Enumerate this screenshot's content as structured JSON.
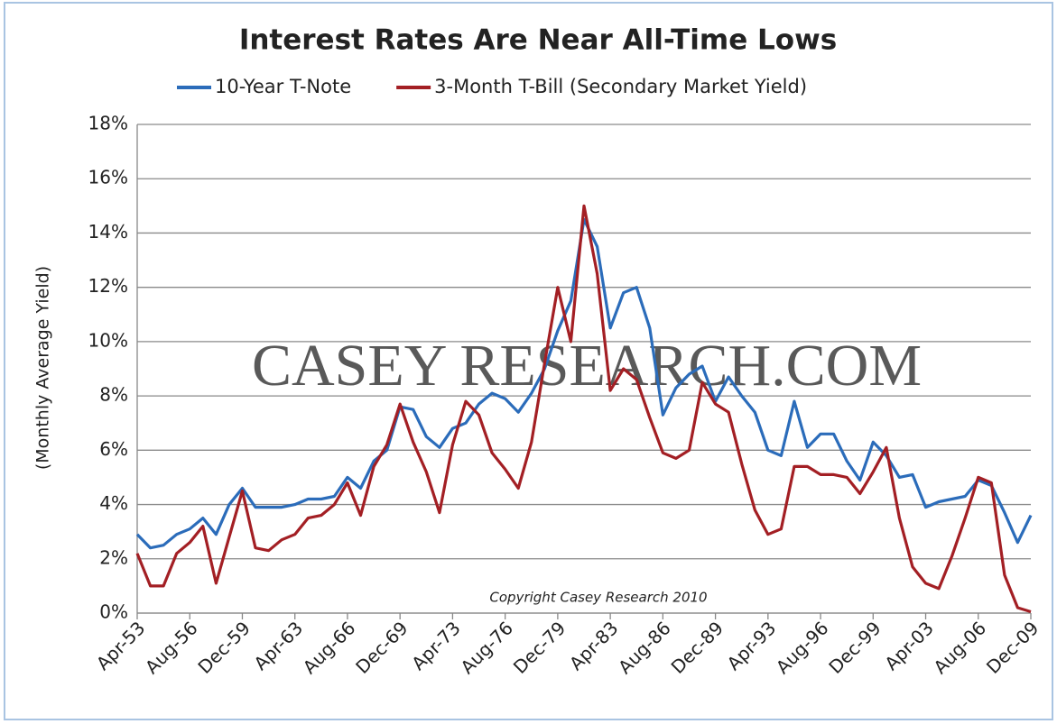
{
  "chart_data": {
    "type": "line",
    "title": "Interest Rates Are Near All-Time Lows",
    "y_label": "(Monthly Average Yield)",
    "annotation": "Copyright Casey Research 2010",
    "watermark": "CASEY RESEARCH.COM",
    "categories": [
      "Apr-53",
      null,
      null,
      null,
      "Aug-56",
      null,
      null,
      null,
      "Dec-59",
      null,
      null,
      null,
      "Apr-63",
      null,
      null,
      null,
      "Aug-66",
      null,
      null,
      null,
      "Dec-69",
      null,
      null,
      null,
      "Apr-73",
      null,
      null,
      null,
      "Aug-76",
      null,
      null,
      null,
      "Dec-79",
      null,
      null,
      null,
      "Apr-83",
      null,
      null,
      null,
      "Aug-86",
      null,
      null,
      null,
      "Dec-89",
      null,
      null,
      null,
      "Apr-93",
      null,
      null,
      null,
      "Aug-96",
      null,
      null,
      null,
      "Dec-99",
      null,
      null,
      null,
      "Apr-03",
      null,
      null,
      null,
      "Aug-06",
      null,
      null,
      null,
      "Dec-09"
    ],
    "series": [
      {
        "name": "10-Year T-Note",
        "color": "#2b6cba",
        "values": [
          2.9,
          2.4,
          2.5,
          2.9,
          3.1,
          3.5,
          2.9,
          4.0,
          4.6,
          3.9,
          3.9,
          3.9,
          4.0,
          4.2,
          4.2,
          4.3,
          5.0,
          4.6,
          5.6,
          6.0,
          7.6,
          7.5,
          6.5,
          6.1,
          6.8,
          7.0,
          7.7,
          8.1,
          7.9,
          7.4,
          8.1,
          9.0,
          10.4,
          11.5,
          14.5,
          13.5,
          10.5,
          11.8,
          12.0,
          10.5,
          7.3,
          8.3,
          8.8,
          9.1,
          7.8,
          8.7,
          8.0,
          7.4,
          6.0,
          5.8,
          7.8,
          6.1,
          6.6,
          6.6,
          5.6,
          4.9,
          6.3,
          5.8,
          5.0,
          5.1,
          3.9,
          4.1,
          4.2,
          4.3,
          4.9,
          4.7,
          3.7,
          2.6,
          3.6
        ]
      },
      {
        "name": "3-Month T-Bill (Secondary Market Yield)",
        "color": "#a31f24",
        "values": [
          2.2,
          1.0,
          1.0,
          2.2,
          2.6,
          3.2,
          1.1,
          2.8,
          4.5,
          2.4,
          2.3,
          2.7,
          2.9,
          3.5,
          3.6,
          4.0,
          4.8,
          3.6,
          5.4,
          6.2,
          7.7,
          6.3,
          5.2,
          3.7,
          6.2,
          7.8,
          7.3,
          5.9,
          5.3,
          4.6,
          6.3,
          9.2,
          12.0,
          10.0,
          15.0,
          12.5,
          8.2,
          9.0,
          8.6,
          7.2,
          5.9,
          5.7,
          6.0,
          8.5,
          7.7,
          7.4,
          5.5,
          3.8,
          2.9,
          3.1,
          5.4,
          5.4,
          5.1,
          5.1,
          5.0,
          4.4,
          5.2,
          6.1,
          3.5,
          1.7,
          1.1,
          0.9,
          2.1,
          3.5,
          5.0,
          4.8,
          1.4,
          0.2,
          0.05
        ]
      }
    ],
    "ylim": [
      0,
      18
    ],
    "yticks": [
      {
        "value": 0,
        "label": "0%"
      },
      {
        "value": 2,
        "label": "2%"
      },
      {
        "value": 4,
        "label": "4%"
      },
      {
        "value": 6,
        "label": "6%"
      },
      {
        "value": 8,
        "label": "8%"
      },
      {
        "value": 10,
        "label": "10%"
      },
      {
        "value": 12,
        "label": "12%"
      },
      {
        "value": 14,
        "label": "14%"
      },
      {
        "value": 16,
        "label": "16%"
      },
      {
        "value": 18,
        "label": "18%"
      }
    ],
    "grid": true,
    "legend": "top"
  }
}
